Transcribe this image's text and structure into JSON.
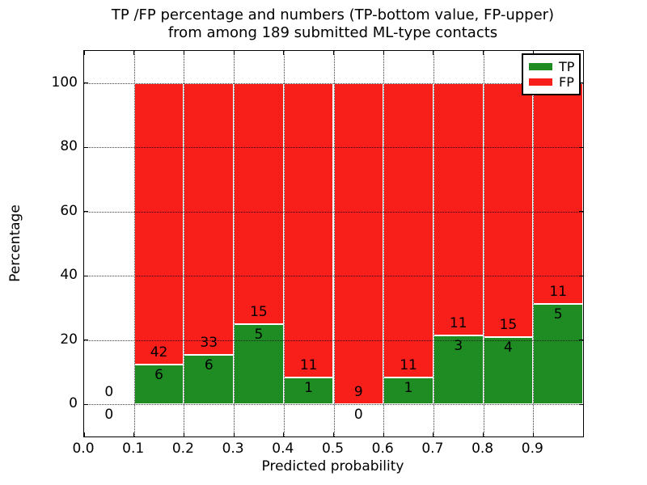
{
  "title": {
    "line1": "TP /FP percentage and numbers (TP-bottom value, FP-upper)",
    "line2": "from among 189 submitted ML-type contacts"
  },
  "axes": {
    "xlabel": "Predicted probability",
    "ylabel": "Percentage",
    "xlim": [
      0,
      1
    ],
    "ylim": [
      -10,
      110
    ],
    "xtick_values": [
      0,
      0.1,
      0.2,
      0.3,
      0.4,
      0.5,
      0.6,
      0.7,
      0.8,
      0.9
    ],
    "xtick_labels": [
      "0.0",
      "0.1",
      "0.2",
      "0.3",
      "0.4",
      "0.5",
      "0.6",
      "0.7",
      "0.8",
      "0.9"
    ],
    "ytick_values": [
      0,
      20,
      40,
      60,
      80,
      100
    ],
    "ytick_labels": [
      "0",
      "20",
      "40",
      "60",
      "80",
      "100"
    ],
    "grid_style": "dotted"
  },
  "legend": {
    "position": "upper-right",
    "items": [
      {
        "label": "TP",
        "color": "#1e8c23"
      },
      {
        "label": "FP",
        "color": "#f81e19"
      }
    ]
  },
  "colors": {
    "tp": "#1e8c23",
    "fp": "#f81e19",
    "bar_edge": "#ffffff",
    "text": "#000000"
  },
  "chart_data": {
    "type": "bar",
    "stacked": true,
    "title": "TP /FP percentage and numbers (TP-bottom value, FP-upper) from among 189 submitted ML-type contacts",
    "xlabel": "Predicted probability",
    "ylabel": "Percentage",
    "total_contacts": 189,
    "bin_width": 0.1,
    "series_names": [
      "TP",
      "FP"
    ],
    "bins": [
      {
        "x0": 0.0,
        "x1": 0.1,
        "tp_count": 0,
        "fp_count": 0,
        "tp_pct": 0,
        "fp_pct": 0
      },
      {
        "x0": 0.1,
        "x1": 0.2,
        "tp_count": 6,
        "fp_count": 42,
        "tp_pct": 12.5,
        "fp_pct": 87.5
      },
      {
        "x0": 0.2,
        "x1": 0.3,
        "tp_count": 6,
        "fp_count": 33,
        "tp_pct": 15.38,
        "fp_pct": 84.62
      },
      {
        "x0": 0.3,
        "x1": 0.4,
        "tp_count": 5,
        "fp_count": 15,
        "tp_pct": 25.0,
        "fp_pct": 75.0
      },
      {
        "x0": 0.4,
        "x1": 0.5,
        "tp_count": 1,
        "fp_count": 11,
        "tp_pct": 8.33,
        "fp_pct": 91.67
      },
      {
        "x0": 0.5,
        "x1": 0.6,
        "tp_count": 0,
        "fp_count": 9,
        "tp_pct": 0,
        "fp_pct": 100.0
      },
      {
        "x0": 0.6,
        "x1": 0.7,
        "tp_count": 1,
        "fp_count": 11,
        "tp_pct": 8.33,
        "fp_pct": 91.67
      },
      {
        "x0": 0.7,
        "x1": 0.8,
        "tp_count": 3,
        "fp_count": 11,
        "tp_pct": 21.43,
        "fp_pct": 78.57
      },
      {
        "x0": 0.8,
        "x1": 0.9,
        "tp_count": 4,
        "fp_count": 15,
        "tp_pct": 21.05,
        "fp_pct": 78.95
      },
      {
        "x0": 0.9,
        "x1": 1.0,
        "tp_count": 5,
        "fp_count": 11,
        "tp_pct": 31.25,
        "fp_pct": 68.75
      }
    ]
  }
}
